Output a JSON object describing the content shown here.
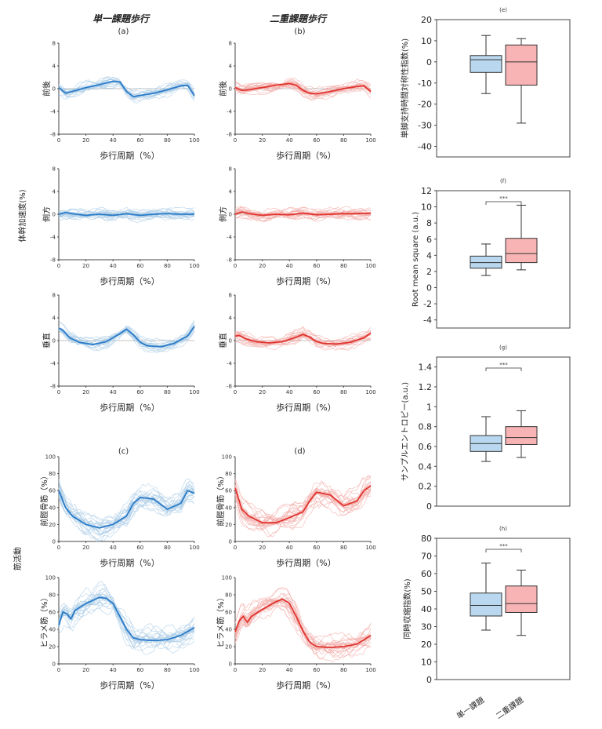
{
  "headers": {
    "single": "単一課題歩行",
    "dual": "二重課題歩行"
  },
  "group_labels": {
    "trunk": "体幹加速度(%)",
    "muscle": "筋活動"
  },
  "xlabel": "歩行周期（%）",
  "colors": {
    "single": "#2a7bc8",
    "single_light": "#a9cbe6",
    "dual": "#e0342f",
    "dual_light": "#f2a9a6",
    "box_single": "#b9d7ee",
    "box_dual": "#f8b4b4"
  },
  "categories": [
    "単一課題",
    "二重課題"
  ],
  "significance": "***",
  "chart_data": [
    {
      "type": "line",
      "panel": "(a)",
      "ylabel": "前後",
      "ylim": [
        -8,
        8
      ],
      "yticks": [
        -8,
        -4,
        0,
        4,
        8
      ],
      "xticks": [
        0,
        20,
        40,
        60,
        80,
        100
      ],
      "series": [
        {
          "x": [
            0,
            5,
            10,
            20,
            30,
            40,
            45,
            50,
            55,
            60,
            70,
            80,
            90,
            95,
            100
          ],
          "values": [
            0.2,
            -0.8,
            -0.5,
            0.2,
            0.7,
            1.3,
            1.2,
            -0.5,
            -1.4,
            -1.2,
            -0.8,
            -0.2,
            0.5,
            0.6,
            -1.2
          ]
        }
      ]
    },
    {
      "type": "line",
      "panel": "(b)",
      "ylabel": "前後",
      "ylim": [
        -8,
        8
      ],
      "yticks": [
        -8,
        -4,
        0,
        4,
        8
      ],
      "xticks": [
        0,
        20,
        40,
        60,
        80,
        100
      ],
      "series": [
        {
          "x": [
            0,
            5,
            10,
            20,
            30,
            40,
            45,
            50,
            55,
            60,
            70,
            80,
            90,
            95,
            100
          ],
          "values": [
            0.2,
            -0.3,
            -0.2,
            0.2,
            0.6,
            0.9,
            0.6,
            -0.3,
            -0.8,
            -0.9,
            -0.5,
            0,
            0.4,
            0.5,
            -0.5
          ]
        }
      ]
    },
    {
      "type": "line",
      "panel": "",
      "ylabel": "側方",
      "ylim": [
        -8,
        8
      ],
      "yticks": [
        -8,
        -4,
        0,
        4,
        8
      ],
      "xticks": [
        0,
        20,
        40,
        60,
        80,
        100
      ],
      "series": [
        {
          "x": [
            0,
            5,
            10,
            20,
            30,
            40,
            50,
            60,
            70,
            80,
            90,
            100
          ],
          "values": [
            0,
            0.3,
            0.1,
            -0.2,
            0,
            -0.2,
            0.1,
            -0.2,
            0,
            0.1,
            0,
            0
          ]
        }
      ]
    },
    {
      "type": "line",
      "panel": "",
      "ylabel": "側方",
      "ylim": [
        -8,
        8
      ],
      "yticks": [
        -8,
        -4,
        0,
        4,
        8
      ],
      "xticks": [
        0,
        20,
        40,
        60,
        80,
        100
      ],
      "series": [
        {
          "x": [
            0,
            5,
            10,
            20,
            30,
            40,
            50,
            60,
            70,
            80,
            90,
            100
          ],
          "values": [
            0,
            0.4,
            0.1,
            -0.2,
            0,
            -0.1,
            0.2,
            -0.1,
            0,
            0.1,
            0.1,
            0.2
          ]
        }
      ]
    },
    {
      "type": "line",
      "panel": "",
      "ylabel": "垂直",
      "ylim": [
        -8,
        8
      ],
      "yticks": [
        -8,
        -4,
        0,
        4,
        8
      ],
      "xticks": [
        0,
        20,
        40,
        60,
        80,
        100
      ],
      "series": [
        {
          "x": [
            0,
            3,
            8,
            15,
            25,
            35,
            45,
            50,
            55,
            60,
            65,
            75,
            85,
            95,
            100
          ],
          "values": [
            2.2,
            1.8,
            0.5,
            -0.3,
            -0.7,
            -0.2,
            1.2,
            2.0,
            1.0,
            -0.3,
            -0.9,
            -1.1,
            -0.5,
            0.8,
            2.5
          ]
        }
      ]
    },
    {
      "type": "line",
      "panel": "",
      "ylabel": "垂直",
      "ylim": [
        -8,
        8
      ],
      "yticks": [
        -8,
        -4,
        0,
        4,
        8
      ],
      "xticks": [
        0,
        20,
        40,
        60,
        80,
        100
      ],
      "series": [
        {
          "x": [
            0,
            3,
            8,
            15,
            25,
            35,
            45,
            50,
            55,
            60,
            65,
            75,
            85,
            95,
            100
          ],
          "values": [
            0.8,
            0.9,
            0.3,
            -0.2,
            -0.4,
            -0.2,
            0.6,
            1.1,
            0.6,
            -0.2,
            -0.5,
            -0.6,
            -0.3,
            0.5,
            1.3
          ]
        }
      ]
    },
    {
      "type": "line",
      "panel": "(c)",
      "ylabel": "前脛骨筋（%）",
      "ylim": [
        0,
        100
      ],
      "yticks": [
        0,
        20,
        40,
        60,
        80,
        100
      ],
      "xticks": [
        0,
        20,
        40,
        60,
        80,
        100
      ],
      "series": [
        {
          "x": [
            0,
            5,
            10,
            20,
            30,
            40,
            50,
            55,
            60,
            70,
            80,
            90,
            95,
            100
          ],
          "values": [
            60,
            40,
            30,
            20,
            16,
            20,
            30,
            45,
            52,
            50,
            38,
            45,
            60,
            57
          ]
        }
      ]
    },
    {
      "type": "line",
      "panel": "(d)",
      "ylabel": "前脛骨筋（%）",
      "ylim": [
        0,
        100
      ],
      "yticks": [
        0,
        20,
        40,
        60,
        80,
        100
      ],
      "xticks": [
        0,
        20,
        40,
        60,
        80,
        100
      ],
      "series": [
        {
          "x": [
            0,
            5,
            10,
            20,
            30,
            40,
            50,
            55,
            60,
            70,
            80,
            90,
            95,
            100
          ],
          "values": [
            63,
            38,
            30,
            22,
            22,
            28,
            35,
            48,
            58,
            55,
            42,
            48,
            60,
            66
          ]
        }
      ]
    },
    {
      "type": "line",
      "panel": "",
      "ylabel": "ヒラメ筋（%）",
      "ylim": [
        0,
        100
      ],
      "yticks": [
        0,
        20,
        40,
        60,
        80,
        100
      ],
      "xticks": [
        0,
        20,
        40,
        60,
        80,
        100
      ],
      "series": [
        {
          "x": [
            0,
            3,
            6,
            9,
            12,
            20,
            30,
            35,
            40,
            45,
            50,
            55,
            60,
            70,
            80,
            90,
            100
          ],
          "values": [
            45,
            60,
            58,
            52,
            62,
            70,
            77,
            76,
            70,
            55,
            40,
            30,
            28,
            27,
            28,
            33,
            42
          ]
        }
      ]
    },
    {
      "type": "line",
      "panel": "",
      "ylabel": "ヒラメ筋（%）",
      "ylim": [
        0,
        100
      ],
      "yticks": [
        0,
        20,
        40,
        60,
        80,
        100
      ],
      "xticks": [
        0,
        20,
        40,
        60,
        80,
        100
      ],
      "series": [
        {
          "x": [
            0,
            3,
            6,
            9,
            12,
            20,
            30,
            35,
            40,
            45,
            50,
            55,
            60,
            70,
            80,
            90,
            100
          ],
          "values": [
            37,
            50,
            55,
            48,
            55,
            63,
            72,
            75,
            70,
            55,
            38,
            25,
            20,
            19,
            20,
            23,
            33
          ]
        }
      ]
    },
    {
      "type": "box",
      "panel": "(e)",
      "ylabel": "単脚支持時間対称性指数(%)",
      "ylim": [
        -45,
        20
      ],
      "yticks": [
        -40,
        -30,
        -20,
        -10,
        0,
        10,
        20
      ],
      "boxes": [
        {
          "min": -15,
          "q1": -5,
          "median": 1,
          "q3": 3,
          "max": 12.5
        },
        {
          "min": -29,
          "q1": -11,
          "median": 0,
          "q3": 8,
          "max": 11
        }
      ]
    },
    {
      "type": "box",
      "panel": "(f)",
      "ylabel": "Root mean square (a.u.)",
      "ylim": [
        -5,
        12
      ],
      "yticks": [
        -4,
        -2,
        0,
        2,
        4,
        6,
        8,
        10,
        12
      ],
      "boxes": [
        {
          "min": 1.5,
          "q1": 2.4,
          "median": 3.1,
          "q3": 3.9,
          "max": 5.4
        },
        {
          "min": 2.2,
          "q1": 3.1,
          "median": 4.2,
          "q3": 6.1,
          "max": 10.2
        }
      ]
    },
    {
      "type": "box",
      "panel": "(g)",
      "ylabel": "サンプルエントロピー(a.u.)",
      "ylim": [
        0,
        1.5
      ],
      "yticks": [
        0,
        0.2,
        0.4,
        0.6,
        0.8,
        1,
        1.2,
        1.4
      ],
      "boxes": [
        {
          "min": 0.45,
          "q1": 0.55,
          "median": 0.63,
          "q3": 0.71,
          "max": 0.9
        },
        {
          "min": 0.49,
          "q1": 0.62,
          "median": 0.69,
          "q3": 0.8,
          "max": 0.96
        }
      ]
    },
    {
      "type": "box",
      "panel": "(h)",
      "ylabel": "同時収縮指数(%)",
      "ylim": [
        0,
        80
      ],
      "yticks": [
        0,
        10,
        20,
        30,
        40,
        50,
        60,
        70,
        80
      ],
      "boxes": [
        {
          "min": 28,
          "q1": 36,
          "median": 42,
          "q3": 49,
          "max": 66
        },
        {
          "min": 25,
          "q1": 38,
          "median": 43,
          "q3": 53,
          "max": 62
        }
      ]
    }
  ]
}
